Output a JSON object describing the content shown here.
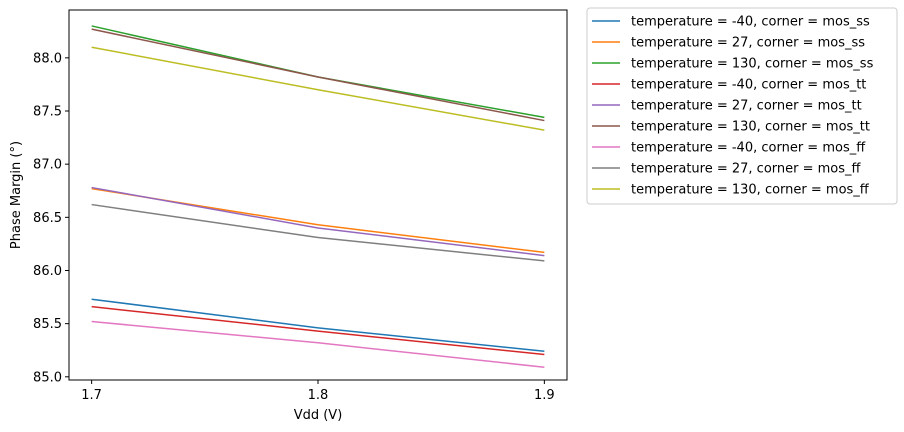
{
  "chart_data": {
    "type": "line",
    "xlabel": "Vdd (V)",
    "ylabel": "Phase Margin (°)",
    "x": [
      1.7,
      1.8,
      1.9
    ],
    "xlim": [
      1.69,
      1.91
    ],
    "ylim": [
      84.97,
      88.45
    ],
    "xticks": [
      1.7,
      1.8,
      1.9
    ],
    "xtick_labels": [
      "1.7",
      "1.8",
      "1.9"
    ],
    "yticks": [
      85.0,
      85.5,
      86.0,
      86.5,
      87.0,
      87.5,
      88.0
    ],
    "ytick_labels": [
      "85.0",
      "85.5",
      "86.0",
      "86.5",
      "87.0",
      "87.5",
      "88.0"
    ],
    "grid": false,
    "legend_position": "outside-top-right",
    "series": [
      {
        "name": "temperature = -40, corner = mos_ss",
        "color": "#1f77b4",
        "values": [
          85.73,
          85.46,
          85.24
        ]
      },
      {
        "name": "temperature = 27, corner = mos_ss",
        "color": "#ff7f0e",
        "values": [
          86.77,
          86.43,
          86.17
        ]
      },
      {
        "name": "temperature = 130, corner = mos_ss",
        "color": "#2ca02c",
        "values": [
          88.3,
          87.82,
          87.44
        ]
      },
      {
        "name": "temperature = -40, corner = mos_tt",
        "color": "#d62728",
        "values": [
          85.66,
          85.43,
          85.21
        ]
      },
      {
        "name": "temperature = 27, corner = mos_tt",
        "color": "#9467bd",
        "values": [
          86.78,
          86.4,
          86.14
        ]
      },
      {
        "name": "temperature = 130, corner = mos_tt",
        "color": "#8c564b",
        "values": [
          88.27,
          87.82,
          87.41
        ]
      },
      {
        "name": "temperature = -40, corner = mos_ff",
        "color": "#e377c2",
        "values": [
          85.52,
          85.32,
          85.09
        ]
      },
      {
        "name": "temperature = 27, corner = mos_ff",
        "color": "#7f7f7f",
        "values": [
          86.62,
          86.31,
          86.09
        ]
      },
      {
        "name": "temperature = 130, corner = mos_ff",
        "color": "#bcbd22",
        "values": [
          88.1,
          87.7,
          87.32
        ]
      }
    ]
  }
}
